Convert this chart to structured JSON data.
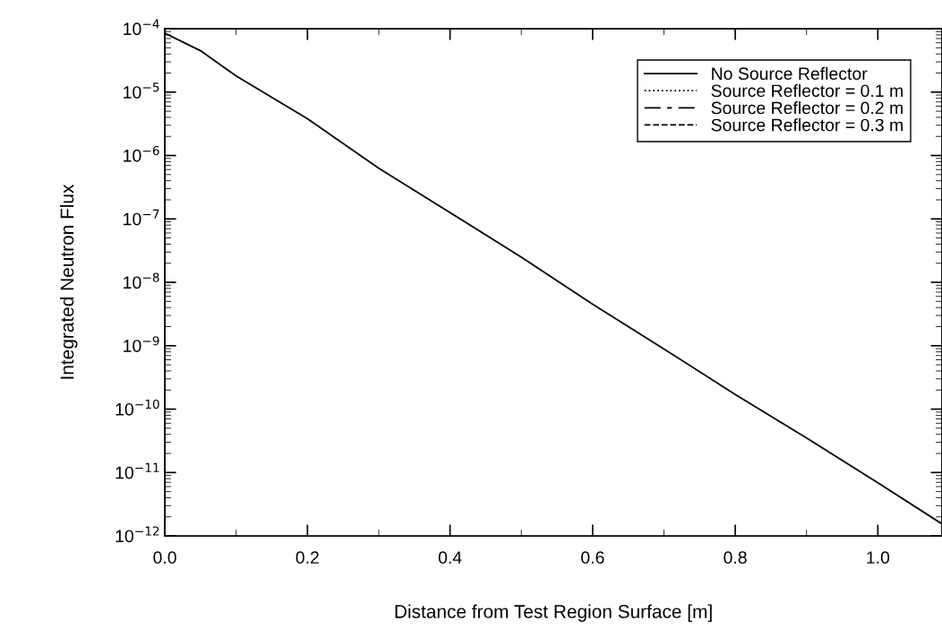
{
  "chart_data": {
    "type": "line",
    "xlabel": "Distance from Test Region Surface [m]",
    "ylabel": "Integrated Neutron Flux",
    "x": [
      0,
      0.05,
      0.1,
      0.2,
      0.3,
      0.4,
      0.5,
      0.6,
      0.7,
      0.8,
      0.9,
      1.0,
      1.088
    ],
    "series": [
      {
        "name": "No Source Reflector",
        "color": "#000000",
        "line_style": "solid",
        "values": [
          8.5e-05,
          4.5e-05,
          1.8e-05,
          3.8e-06,
          6.3e-07,
          1.26e-07,
          2.5e-08,
          4.5e-09,
          8.9e-10,
          1.7e-10,
          3.5e-11,
          6.9e-12,
          1.6e-12
        ]
      },
      {
        "name": "Source Reflector = 0.1 m",
        "color": "#000000",
        "line_style": "dotted",
        "values": [
          null,
          null,
          null,
          null,
          null,
          null,
          null,
          null,
          null,
          null,
          null,
          null,
          null
        ]
      },
      {
        "name": "Source Reflector = 0.2 m",
        "color": "#000000",
        "line_style": "dashdot",
        "values": [
          null,
          null,
          null,
          null,
          null,
          null,
          null,
          null,
          null,
          null,
          null,
          null,
          null
        ]
      },
      {
        "name": "Source Reflector = 0.3 m",
        "color": "#000000",
        "line_style": "dashed",
        "values": [
          null,
          null,
          null,
          null,
          null,
          null,
          null,
          null,
          null,
          null,
          null,
          null,
          null
        ]
      }
    ],
    "log": "y",
    "xlim": [
      0,
      1.09
    ],
    "ylim": [
      1e-12,
      0.0001
    ],
    "xticks": [
      {
        "value": 0,
        "label": "0.0"
      },
      0.2,
      0.4,
      0.6,
      0.8,
      {
        "value": 1.0,
        "label": "1.0"
      }
    ],
    "yticks": [
      {
        "value": 1e-12,
        "label": "10$^{−12}$"
      },
      {
        "value": 1e-11,
        "label": "10$^{−11}$"
      },
      {
        "value": 1e-10,
        "label": "10$^{−10}$"
      },
      {
        "value": 1e-09,
        "label": "10$^{−9}$"
      },
      {
        "value": 1e-08,
        "label": "10$^{−8}$"
      },
      {
        "value": 1e-07,
        "label": "10$^{−7}$"
      },
      {
        "value": 1e-06,
        "label": "10$^{−6}$"
      },
      {
        "value": 1e-05,
        "label": "10$^{−5}$"
      },
      {
        "value": 0.0001,
        "label": "10$^{−4}$"
      }
    ],
    "grid": false,
    "legend": "top right",
    "marker": "none"
  }
}
